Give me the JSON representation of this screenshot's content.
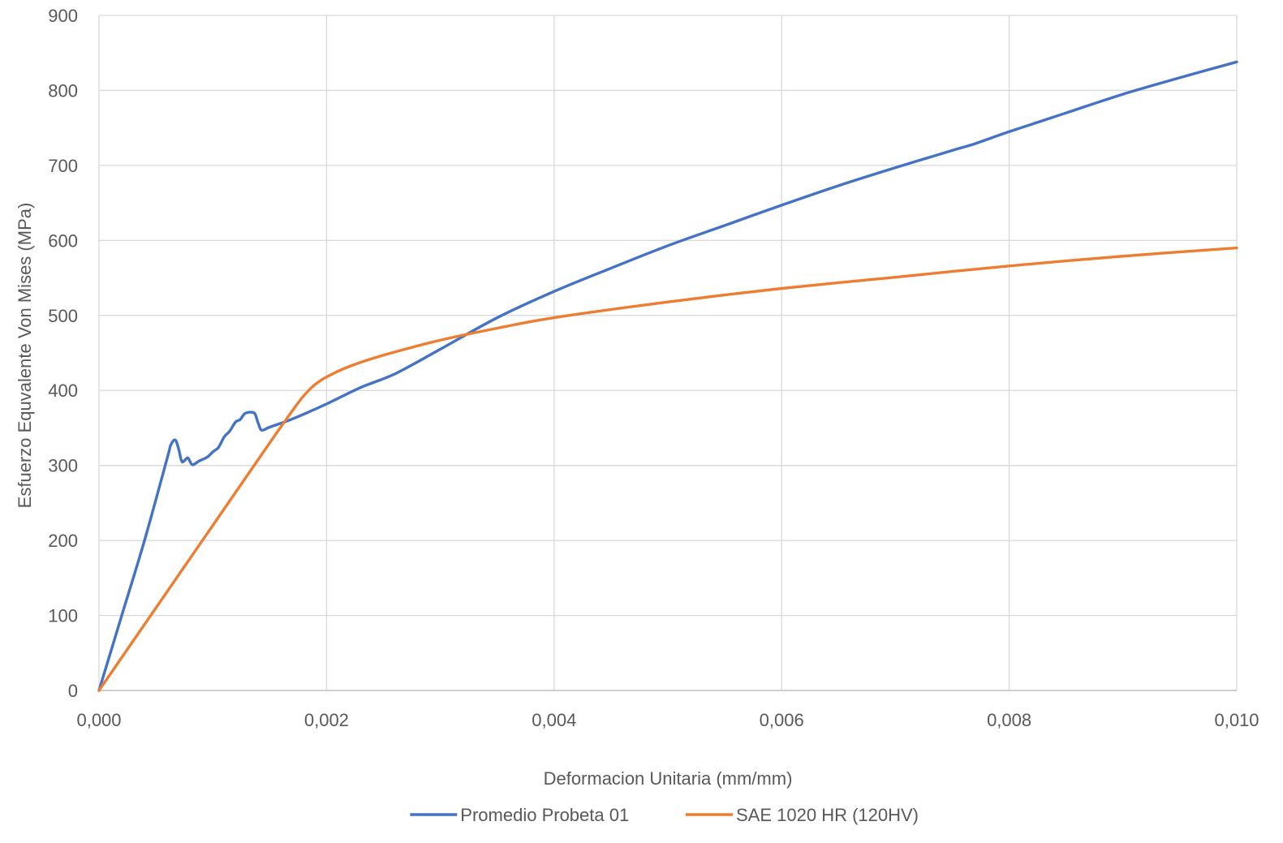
{
  "chart_data": {
    "type": "line",
    "title": "",
    "xlabel": "Deformacion Unitaria (mm/mm)",
    "ylabel": "Esfuerzo Equvalente Von Mises (MPa)",
    "xlim": [
      0,
      0.01
    ],
    "ylim": [
      0,
      900
    ],
    "x_ticks": [
      "0,000",
      "0,002",
      "0,004",
      "0,006",
      "0,008",
      "0,010"
    ],
    "x_tick_values": [
      0,
      0.002,
      0.004,
      0.006,
      0.008,
      0.01
    ],
    "y_ticks": [
      "0",
      "100",
      "200",
      "300",
      "400",
      "500",
      "600",
      "700",
      "800",
      "900"
    ],
    "y_tick_values": [
      0,
      100,
      200,
      300,
      400,
      500,
      600,
      700,
      800,
      900
    ],
    "grid": true,
    "legend_position": "bottom",
    "series": [
      {
        "name": "Promedio Probeta 01",
        "color": "#4472C4",
        "points": [
          [
            0,
            0
          ],
          [
            0.0002,
            100
          ],
          [
            0.0004,
            200
          ],
          [
            0.0006,
            310
          ],
          [
            0.00063,
            327
          ],
          [
            0.00067,
            334
          ],
          [
            0.0007,
            322
          ],
          [
            0.00073,
            305
          ],
          [
            0.00078,
            310
          ],
          [
            0.00082,
            301
          ],
          [
            0.00088,
            306
          ],
          [
            0.00095,
            311
          ],
          [
            0.001,
            318
          ],
          [
            0.00105,
            324
          ],
          [
            0.0011,
            338
          ],
          [
            0.00115,
            346
          ],
          [
            0.0012,
            358
          ],
          [
            0.00124,
            361
          ],
          [
            0.00128,
            369
          ],
          [
            0.00133,
            371
          ],
          [
            0.00137,
            369
          ],
          [
            0.0014,
            356
          ],
          [
            0.00143,
            347
          ],
          [
            0.0015,
            351
          ],
          [
            0.0017,
            362
          ],
          [
            0.002,
            382
          ],
          [
            0.0023,
            404
          ],
          [
            0.0026,
            422
          ],
          [
            0.003,
            455
          ],
          [
            0.0035,
            497
          ],
          [
            0.004,
            532
          ],
          [
            0.0045,
            563
          ],
          [
            0.005,
            593
          ],
          [
            0.0055,
            620
          ],
          [
            0.006,
            647
          ],
          [
            0.0065,
            673
          ],
          [
            0.007,
            697
          ],
          [
            0.0075,
            720
          ],
          [
            0.0077,
            729
          ],
          [
            0.008,
            745
          ],
          [
            0.0085,
            770
          ],
          [
            0.009,
            795
          ],
          [
            0.0095,
            817
          ],
          [
            0.01,
            838
          ]
        ]
      },
      {
        "name": "SAE 1020 HR (120HV)",
        "color": "#ED7D31",
        "points": [
          [
            0,
            0
          ],
          [
            0.0005,
            110
          ],
          [
            0.001,
            220
          ],
          [
            0.0015,
            330
          ],
          [
            0.0017,
            373
          ],
          [
            0.0018,
            393
          ],
          [
            0.0019,
            408
          ],
          [
            0.002,
            418
          ],
          [
            0.0022,
            432
          ],
          [
            0.0025,
            447
          ],
          [
            0.003,
            467
          ],
          [
            0.0035,
            483
          ],
          [
            0.004,
            497
          ],
          [
            0.005,
            518
          ],
          [
            0.006,
            536
          ],
          [
            0.007,
            551
          ],
          [
            0.008,
            566
          ],
          [
            0.009,
            579
          ],
          [
            0.01,
            590
          ]
        ]
      }
    ]
  }
}
